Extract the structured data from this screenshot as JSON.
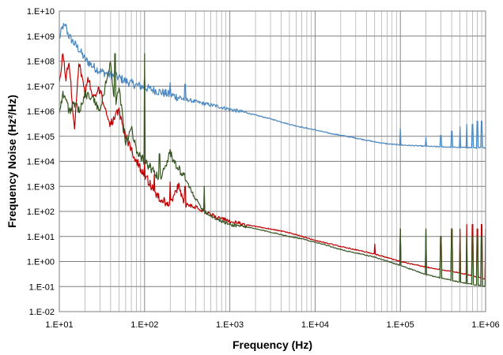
{
  "chart_data": {
    "type": "line",
    "xlabel": "Frequency (Hz)",
    "ylabel": "Frequency Noise (Hz²/Hz)",
    "x_scale": "log",
    "y_scale": "log",
    "xlim": [
      10,
      1000000
    ],
    "ylim": [
      0.01,
      10000000000
    ],
    "x_ticks": [
      "1.E+01",
      "1.E+02",
      "1.E+03",
      "1.E+04",
      "1.E+05",
      "1.E+06"
    ],
    "y_ticks": [
      "1.E-02",
      "1.E-01",
      "1.E+00",
      "1.E+01",
      "1.E+02",
      "1.E+03",
      "1.E+04",
      "1.E+05",
      "1.E+06",
      "1.E+07",
      "1.E+08",
      "1.E+09",
      "1.E+10"
    ],
    "grid": true,
    "legend": "none",
    "series": [
      {
        "color": "#4a86bf",
        "points": [
          [
            10,
            800000000
          ],
          [
            11,
            2500000000
          ],
          [
            12,
            2000000000
          ],
          [
            13,
            1000000000
          ],
          [
            15,
            500000000
          ],
          [
            17,
            300000000
          ],
          [
            20,
            120000000
          ],
          [
            25,
            60000000
          ],
          [
            30,
            40000000
          ],
          [
            40,
            28000000
          ],
          [
            50,
            22000000
          ],
          [
            60,
            16000000
          ],
          [
            80,
            11000000
          ],
          [
            100,
            9000000
          ],
          [
            150,
            6000000
          ],
          [
            200,
            4500000
          ],
          [
            300,
            3000000
          ],
          [
            500,
            2000000
          ],
          [
            700,
            1600000
          ],
          [
            1000,
            1200000
          ],
          [
            1500,
            900000
          ],
          [
            2000,
            700000
          ],
          [
            3000,
            500000
          ],
          [
            5000,
            300000
          ],
          [
            7000,
            230000
          ],
          [
            10000,
            180000
          ],
          [
            15000,
            130000
          ],
          [
            20000,
            110000
          ],
          [
            30000,
            85000
          ],
          [
            50000,
            60000
          ],
          [
            70000,
            50000
          ],
          [
            100000,
            45000
          ],
          [
            200000,
            40000
          ],
          [
            300000,
            38000
          ],
          [
            500000,
            36000
          ],
          [
            700000,
            35000
          ],
          [
            1000000,
            34000
          ]
        ],
        "spikes": [
          [
            12,
            3000000000
          ],
          [
            35,
            30000000
          ],
          [
            45,
            40000000
          ],
          [
            60,
            12000000
          ],
          [
            100,
            30000000
          ],
          [
            200,
            14000000
          ],
          [
            300,
            12000000
          ],
          [
            100000,
            200000
          ],
          [
            200000,
            90000
          ],
          [
            300000,
            110000
          ],
          [
            400000,
            160000
          ],
          [
            500000,
            240000
          ],
          [
            600000,
            300000
          ],
          [
            700000,
            300000
          ],
          [
            800000,
            400000
          ],
          [
            900000,
            400000
          ]
        ]
      },
      {
        "color": "#c00000",
        "points": [
          [
            10,
            10000000
          ],
          [
            11,
            200000000
          ],
          [
            12,
            20000000
          ],
          [
            13,
            100000000
          ],
          [
            15,
            200000
          ],
          [
            17,
            100000000
          ],
          [
            20,
            5000000
          ],
          [
            22,
            20000000
          ],
          [
            25,
            3000000
          ],
          [
            30,
            8000000
          ],
          [
            35,
            1000000
          ],
          [
            40,
            300000
          ],
          [
            50,
            1000000
          ],
          [
            60,
            100000
          ],
          [
            70,
            30000
          ],
          [
            80,
            10000
          ],
          [
            100,
            3000
          ],
          [
            120,
            1000
          ],
          [
            150,
            300
          ],
          [
            200,
            200
          ],
          [
            250,
            1000
          ],
          [
            300,
            200
          ],
          [
            400,
            150
          ],
          [
            500,
            100
          ],
          [
            700,
            60
          ],
          [
            1000,
            40
          ],
          [
            1500,
            30
          ],
          [
            2000,
            25
          ],
          [
            3000,
            20
          ],
          [
            5000,
            14
          ],
          [
            7000,
            10
          ],
          [
            10000,
            7
          ],
          [
            20000,
            4
          ],
          [
            50000,
            2
          ],
          [
            100000,
            1
          ],
          [
            200000,
            0.6
          ],
          [
            500000,
            0.35
          ],
          [
            1000000,
            0.2
          ]
        ],
        "spikes": [
          [
            25,
            30000
          ],
          [
            45,
            100000
          ],
          [
            60,
            20000
          ],
          [
            100,
            10000
          ],
          [
            130,
            3000
          ],
          [
            200,
            1500
          ],
          [
            300,
            1000
          ],
          [
            500,
            300
          ],
          [
            50000,
            5
          ],
          [
            100000,
            20
          ],
          [
            200000,
            20
          ],
          [
            300000,
            10
          ],
          [
            400000,
            20
          ],
          [
            500000,
            20
          ],
          [
            600000,
            30
          ],
          [
            700000,
            30
          ],
          [
            800000,
            20
          ],
          [
            900000,
            30
          ],
          [
            1000000,
            20
          ]
        ]
      },
      {
        "color": "#375623",
        "points": [
          [
            10,
            1000000
          ],
          [
            11,
            5000000
          ],
          [
            12,
            3000000
          ],
          [
            13,
            1000000
          ],
          [
            15,
            2000000
          ],
          [
            17,
            1000000
          ],
          [
            20,
            5000000
          ],
          [
            25,
            3000000
          ],
          [
            30,
            1000000
          ],
          [
            40,
            100000000
          ],
          [
            45,
            1000000
          ],
          [
            50,
            10000000
          ],
          [
            60,
            50000
          ],
          [
            70,
            200000
          ],
          [
            80,
            30000
          ],
          [
            100,
            10000
          ],
          [
            120,
            5000
          ],
          [
            150,
            2000
          ],
          [
            200,
            20000
          ],
          [
            250,
            5000
          ],
          [
            300,
            2000
          ],
          [
            400,
            300
          ],
          [
            500,
            100
          ],
          [
            700,
            50
          ],
          [
            1000,
            30
          ],
          [
            1500,
            25
          ],
          [
            2000,
            20
          ],
          [
            3000,
            15
          ],
          [
            5000,
            10
          ],
          [
            7000,
            8
          ],
          [
            10000,
            6
          ],
          [
            20000,
            3
          ],
          [
            50000,
            1.5
          ],
          [
            100000,
            0.7
          ],
          [
            200000,
            0.3
          ],
          [
            500000,
            0.15
          ],
          [
            1000000,
            0.1
          ]
        ],
        "spikes": [
          [
            45,
            200000000
          ],
          [
            100,
            200000000
          ],
          [
            150,
            20000
          ],
          [
            200,
            30000
          ],
          [
            300,
            300
          ],
          [
            500,
            1000
          ],
          [
            100000,
            20
          ],
          [
            200000,
            20
          ],
          [
            300000,
            10
          ],
          [
            400000,
            20
          ],
          [
            500000,
            10
          ],
          [
            600000,
            10
          ],
          [
            700000,
            10
          ],
          [
            800000,
            10
          ],
          [
            900000,
            10
          ],
          [
            1000000,
            10
          ]
        ]
      }
    ]
  }
}
